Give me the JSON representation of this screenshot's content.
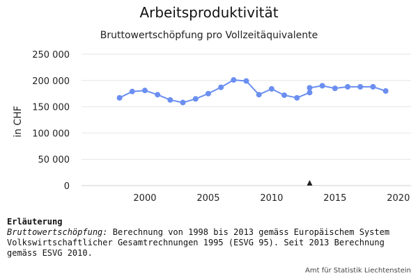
{
  "title": "Arbeitsproduktivität",
  "subtitle": "Bruttowertschöpfung pro Vollzeitäquivalente",
  "chart_data": {
    "type": "line",
    "ylabel": "in CHF",
    "xlabel": "",
    "xlim": [
      1995,
      2021
    ],
    "ylim": [
      0,
      250000
    ],
    "x_ticks": [
      2000,
      2005,
      2010,
      2015,
      2020
    ],
    "y_ticks": [
      0,
      50000,
      100000,
      150000,
      200000,
      250000
    ],
    "y_tick_labels": [
      "0",
      "50 000",
      "100 000",
      "150 000",
      "200 000",
      "250 000"
    ],
    "grid": true,
    "series": [
      {
        "color": "#6b8ff0",
        "x": [
          1998,
          1999,
          2000,
          2001,
          2002,
          2003,
          2004,
          2005,
          2006,
          2007,
          2008,
          2009,
          2010,
          2011,
          2012,
          2013
        ],
        "y": [
          167000,
          179000,
          181000,
          173000,
          163000,
          158000,
          165000,
          175000,
          187000,
          201000,
          199000,
          173000,
          184000,
          172000,
          167000,
          177000
        ]
      },
      {
        "color": "#6b8ff0",
        "x": [
          2013,
          2014,
          2015,
          2016,
          2017,
          2018,
          2019
        ],
        "y": [
          186000,
          190000,
          185000,
          188000,
          188000,
          188000,
          180000
        ]
      }
    ],
    "marker": {
      "x": 2013,
      "color": "#222222"
    }
  },
  "notes": {
    "heading": "Erläuterung",
    "term": "Bruttowertschöpfung:",
    "text": " Berechnung von 1998 bis 2013 gemäss Europäischem System Volkswirtschaftlicher Gesamtrechnungen 1995 (ESVG 95). Seit 2013 Berechnung gemäss ESVG 2010."
  },
  "source": "Amt für Statistik Liechtenstein"
}
